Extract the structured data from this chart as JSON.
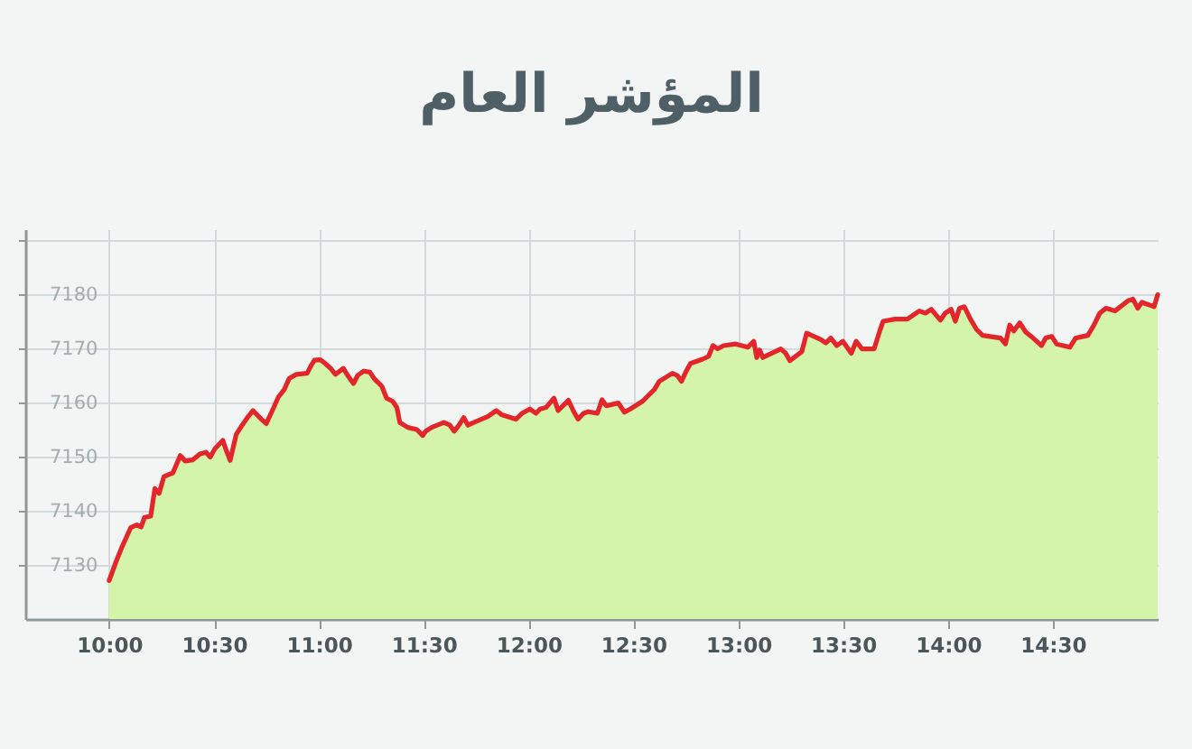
{
  "chart_data": {
    "type": "area",
    "title": "المؤشر العام",
    "x": [
      10.0,
      10.032,
      10.06,
      10.103,
      10.132,
      10.152,
      10.169,
      10.198,
      10.218,
      10.238,
      10.261,
      10.304,
      10.339,
      10.362,
      10.399,
      10.433,
      10.462,
      10.482,
      10.505,
      10.542,
      10.557,
      10.577,
      10.606,
      10.634,
      10.663,
      10.686,
      10.726,
      10.749,
      10.778,
      10.807,
      10.835,
      10.858,
      10.893,
      10.944,
      10.964,
      10.979,
      11.007,
      11.03,
      11.056,
      11.079,
      11.117,
      11.137,
      11.165,
      11.185,
      11.214,
      11.243,
      11.266,
      11.3,
      11.323,
      11.352,
      11.372,
      11.386,
      11.424,
      11.467,
      11.495,
      11.51,
      11.538,
      11.596,
      11.625,
      11.645,
      11.668,
      11.691,
      11.711,
      11.739,
      11.805,
      11.846,
      11.874,
      11.94,
      11.969,
      12.006,
      12.035,
      12.055,
      12.084,
      12.121,
      12.141,
      12.164,
      12.19,
      12.213,
      12.236,
      12.262,
      12.285,
      12.328,
      12.35,
      12.371,
      12.428,
      12.457,
      12.485,
      12.543,
      12.571,
      12.6,
      12.623,
      12.686,
      12.709,
      12.729,
      12.752,
      12.772,
      12.83,
      12.858,
      12.879,
      12.902,
      12.93,
      12.988,
      13.045,
      13.074,
      13.088,
      13.102,
      13.117,
      13.203,
      13.226,
      13.246,
      13.303,
      13.326,
      13.39,
      13.418,
      13.441,
      13.47,
      13.499,
      13.539,
      13.562,
      13.59,
      13.648,
      13.677,
      13.691,
      13.748,
      13.806,
      13.863,
      13.892,
      13.921,
      13.964,
      13.987,
      14.015,
      14.035,
      14.055,
      14.078,
      14.107,
      14.136,
      14.165,
      14.251,
      14.274,
      14.294,
      14.314,
      14.342,
      14.371,
      14.4,
      14.446,
      14.466,
      14.495,
      14.518,
      14.581,
      14.609,
      14.667,
      14.696,
      14.724,
      14.753,
      14.796,
      14.859,
      14.882,
      14.905,
      14.925,
      14.983,
      15.0
    ],
    "series": [
      {
        "color": "#d3f4a9",
        "values": [
          7127.1,
          7130.5,
          7133.2,
          7136.9,
          7137.4,
          7137.0,
          7138.8,
          7139.0,
          7144.1,
          7143.2,
          7146.3,
          7147.0,
          7150.2,
          7149.2,
          7149.4,
          7150.5,
          7150.8,
          7149.9,
          7151.5,
          7153.0,
          7151.3,
          7149.3,
          7154.1,
          7155.8,
          7157.4,
          7158.5,
          7156.9,
          7156.1,
          7158.5,
          7161.0,
          7162.4,
          7164.4,
          7165.2,
          7165.4,
          7166.9,
          7167.8,
          7167.9,
          7167.2,
          7166.3,
          7165.2,
          7166.3,
          7165.0,
          7163.5,
          7165.0,
          7165.8,
          7165.6,
          7164.3,
          7163.0,
          7160.8,
          7160.2,
          7159.1,
          7156.3,
          7155.4,
          7155.0,
          7153.9,
          7154.7,
          7155.4,
          7156.3,
          7155.8,
          7154.7,
          7155.8,
          7157.2,
          7155.8,
          7156.3,
          7157.4,
          7158.5,
          7157.7,
          7156.9,
          7158.0,
          7158.8,
          7158.0,
          7158.8,
          7159.1,
          7160.8,
          7158.5,
          7159.4,
          7160.4,
          7158.5,
          7156.9,
          7158.0,
          7158.3,
          7158.0,
          7160.5,
          7159.4,
          7159.9,
          7158.2,
          7158.8,
          7160.2,
          7161.3,
          7162.4,
          7163.9,
          7165.4,
          7165.0,
          7163.9,
          7165.8,
          7167.2,
          7168.0,
          7168.5,
          7170.5,
          7169.9,
          7170.5,
          7170.8,
          7170.2,
          7171.3,
          7168.3,
          7169.7,
          7168.3,
          7169.9,
          7169.1,
          7167.7,
          7169.4,
          7172.8,
          7171.7,
          7171.0,
          7171.9,
          7170.5,
          7171.3,
          7169.1,
          7171.3,
          7169.9,
          7169.9,
          7173.5,
          7175.0,
          7175.4,
          7175.4,
          7176.9,
          7176.5,
          7177.2,
          7175.2,
          7176.5,
          7177.2,
          7175.0,
          7177.4,
          7177.7,
          7175.4,
          7173.5,
          7172.4,
          7171.9,
          7170.8,
          7174.3,
          7173.2,
          7174.7,
          7173.0,
          7172.1,
          7170.5,
          7171.9,
          7172.2,
          7170.8,
          7170.2,
          7171.9,
          7172.4,
          7174.3,
          7176.5,
          7177.4,
          7176.9,
          7178.8,
          7179.1,
          7177.4,
          7178.5,
          7177.7,
          7179.9
        ]
      },
      {
        "type": "line",
        "color": "#e3262b",
        "line_style": "solid",
        "values": [
          7127.1,
          7130.5,
          7133.2,
          7136.9,
          7137.4,
          7137.0,
          7138.8,
          7139.0,
          7144.1,
          7143.2,
          7146.3,
          7147.0,
          7150.2,
          7149.2,
          7149.4,
          7150.5,
          7150.8,
          7149.9,
          7151.5,
          7153.0,
          7151.3,
          7149.3,
          7154.1,
          7155.8,
          7157.4,
          7158.5,
          7156.9,
          7156.1,
          7158.5,
          7161.0,
          7162.4,
          7164.4,
          7165.2,
          7165.4,
          7166.9,
          7167.8,
          7167.9,
          7167.2,
          7166.3,
          7165.2,
          7166.3,
          7165.0,
          7163.5,
          7165.0,
          7165.8,
          7165.6,
          7164.3,
          7163.0,
          7160.8,
          7160.2,
          7159.1,
          7156.3,
          7155.4,
          7155.0,
          7153.9,
          7154.7,
          7155.4,
          7156.3,
          7155.8,
          7154.7,
          7155.8,
          7157.2,
          7155.8,
          7156.3,
          7157.4,
          7158.5,
          7157.7,
          7156.9,
          7158.0,
          7158.8,
          7158.0,
          7158.8,
          7159.1,
          7160.8,
          7158.5,
          7159.4,
          7160.4,
          7158.5,
          7156.9,
          7158.0,
          7158.3,
          7158.0,
          7160.5,
          7159.4,
          7159.9,
          7158.2,
          7158.8,
          7160.2,
          7161.3,
          7162.4,
          7163.9,
          7165.4,
          7165.0,
          7163.9,
          7165.8,
          7167.2,
          7168.0,
          7168.5,
          7170.5,
          7169.9,
          7170.5,
          7170.8,
          7170.2,
          7171.3,
          7168.3,
          7169.7,
          7168.3,
          7169.9,
          7169.1,
          7167.7,
          7169.4,
          7172.8,
          7171.7,
          7171.0,
          7171.9,
          7170.5,
          7171.3,
          7169.1,
          7171.3,
          7169.9,
          7169.9,
          7173.5,
          7175.0,
          7175.4,
          7175.4,
          7176.9,
          7176.5,
          7177.2,
          7175.2,
          7176.5,
          7177.2,
          7175.0,
          7177.4,
          7177.7,
          7175.4,
          7173.5,
          7172.4,
          7171.9,
          7170.8,
          7174.3,
          7173.2,
          7174.7,
          7173.0,
          7172.1,
          7170.5,
          7171.9,
          7172.2,
          7170.8,
          7170.2,
          7171.9,
          7172.4,
          7174.3,
          7176.5,
          7177.4,
          7176.9,
          7178.8,
          7179.1,
          7177.4,
          7178.5,
          7177.7,
          7179.9
        ]
      }
    ],
    "xlim": [
      9.6,
      15.0
    ],
    "xticks": [
      {
        "value": 10,
        "label": "10:00"
      },
      {
        "value": 10.5,
        "label": "10:30"
      },
      {
        "value": 11,
        "label": "11:00"
      },
      {
        "value": 11.5,
        "label": "11:30"
      },
      {
        "value": 12,
        "label": "12:00"
      },
      {
        "value": 12.5,
        "label": "12:30"
      },
      {
        "value": 13,
        "label": "13:00"
      },
      {
        "value": 13.5,
        "label": "13:30"
      },
      {
        "value": 14,
        "label": "14:00"
      },
      {
        "value": 14.5,
        "label": "14:30"
      }
    ],
    "ylim": [
      7120,
      7192
    ],
    "yticks": [
      7130,
      7140,
      7150,
      7160,
      7170,
      7180,
      {
        "value": 7190,
        "label": null
      }
    ],
    "grid": true
  }
}
